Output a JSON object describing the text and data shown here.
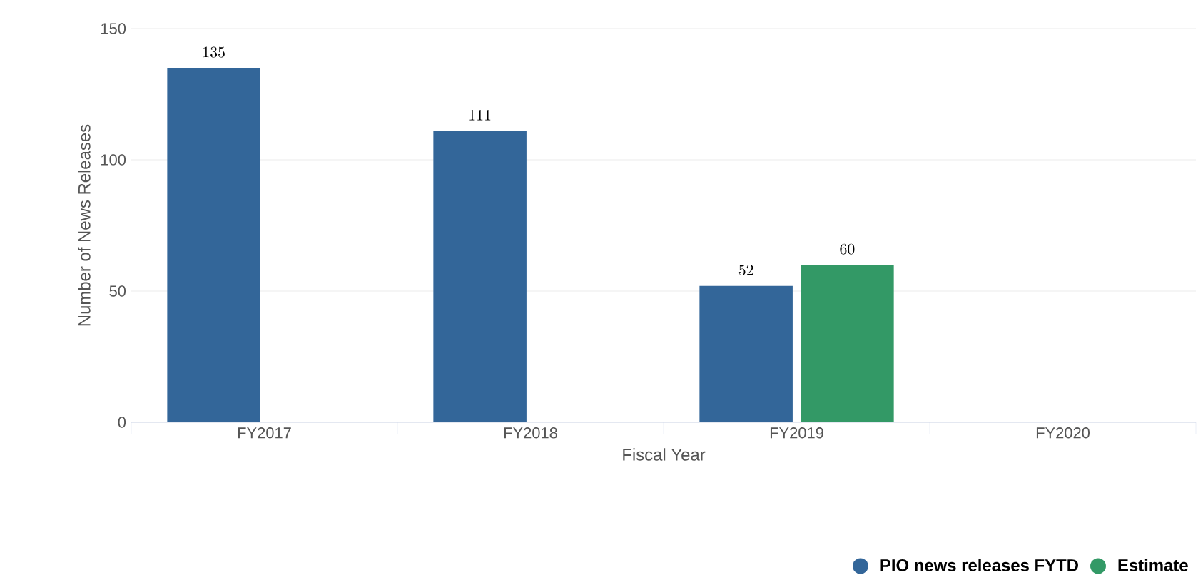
{
  "chart_data": {
    "type": "bar",
    "xlabel": "Fiscal Year",
    "ylabel": "Number of News Releases",
    "categories": [
      "FY2017",
      "FY2018",
      "FY2019",
      "FY2020"
    ],
    "series": [
      {
        "name": "PIO news releases FYTD",
        "color": "#336699",
        "values": [
          135,
          111,
          52,
          null
        ]
      },
      {
        "name": "Estimate",
        "color": "#339966",
        "values": [
          null,
          null,
          60,
          null
        ]
      }
    ],
    "ylim": [
      0,
      150
    ],
    "yticks": [
      0,
      50,
      100,
      150
    ],
    "grid": "y",
    "legend": "bottom right",
    "data_labels": true
  }
}
